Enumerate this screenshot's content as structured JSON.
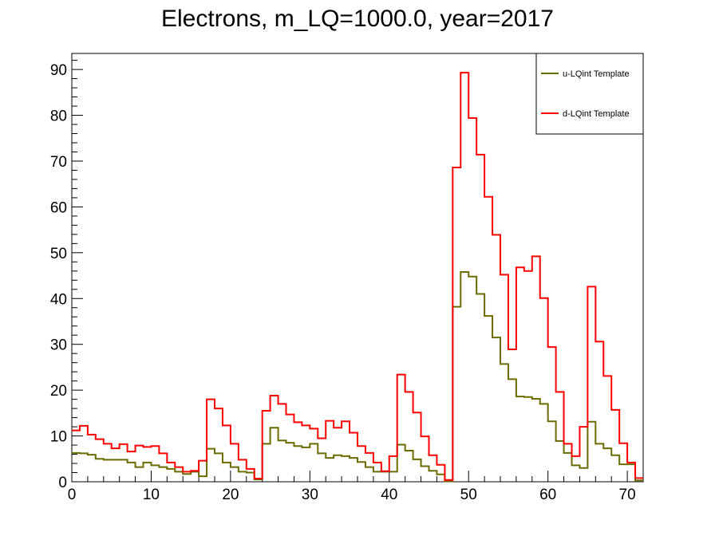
{
  "chart_data": {
    "type": "step-histogram",
    "title": "Electrons, m_LQ=1000.0, year=2017",
    "xlabel": "",
    "ylabel": "",
    "xlim": [
      0,
      72
    ],
    "ylim": [
      0,
      93.5
    ],
    "x_ticks": [
      0,
      10,
      20,
      30,
      40,
      50,
      60,
      70
    ],
    "x_tick_labels": [
      "0",
      "10",
      "20",
      "30",
      "40",
      "50",
      "60",
      "70"
    ],
    "y_ticks": [
      0,
      10,
      20,
      30,
      40,
      50,
      60,
      70,
      80,
      90
    ],
    "y_tick_labels": [
      "0",
      "10",
      "20",
      "30",
      "40",
      "50",
      "60",
      "70",
      "80",
      "90"
    ],
    "legend_position": "top-right",
    "grid": false,
    "bin_edges_start": 0,
    "bin_width": 1,
    "series": [
      {
        "name": "u-LQint Template",
        "color": "#6b6b00",
        "values": [
          6.3,
          6.2,
          5.9,
          5.0,
          4.8,
          4.8,
          4.8,
          4.2,
          3.2,
          4.2,
          3.6,
          3.2,
          2.8,
          2.2,
          1.7,
          2.2,
          1.2,
          7.2,
          6.2,
          4.2,
          3.2,
          2.2,
          2.0,
          0.5,
          8.3,
          11.8,
          9.0,
          8.5,
          7.8,
          7.5,
          8.3,
          6.2,
          5.2,
          5.8,
          5.6,
          5.2,
          4.3,
          3.2,
          2.2,
          2.2,
          2.2,
          8.1,
          6.8,
          4.9,
          3.4,
          2.4,
          1.6,
          0.1,
          38.2,
          45.8,
          44.8,
          41.0,
          36.2,
          31.5,
          25.7,
          22.4,
          18.6,
          18.5,
          18.1,
          17.0,
          13.2,
          8.9,
          6.3,
          3.6,
          3.0,
          13.1,
          8.3,
          7.3,
          5.8,
          3.8,
          3.8,
          0.3
        ]
      },
      {
        "name": "d-LQint Template",
        "color": "#ff0000",
        "values": [
          11.2,
          12.2,
          10.3,
          9.3,
          8.3,
          7.3,
          8.2,
          6.6,
          7.9,
          7.6,
          7.8,
          6.2,
          4.2,
          3.2,
          2.2,
          2.4,
          4.6,
          18.0,
          16.0,
          12.3,
          8.3,
          4.8,
          2.8,
          0.7,
          15.5,
          18.8,
          17.0,
          14.7,
          13.0,
          12.3,
          11.6,
          9.5,
          13.3,
          11.8,
          13.2,
          10.7,
          7.8,
          6.3,
          4.2,
          2.3,
          5.6,
          23.4,
          19.6,
          15.1,
          9.9,
          5.8,
          3.7,
          0.4,
          68.6,
          89.3,
          79.4,
          71.4,
          62.2,
          53.9,
          45.2,
          28.9,
          46.8,
          46.0,
          49.2,
          40.1,
          29.4,
          19.6,
          8.3,
          5.6,
          12.0,
          42.6,
          30.6,
          23.1,
          15.7,
          8.4,
          4.2,
          0.8
        ]
      }
    ]
  }
}
